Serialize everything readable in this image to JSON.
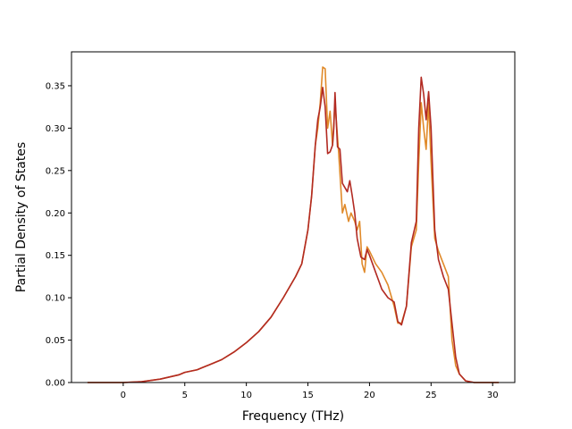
{
  "chart_data": {
    "type": "line",
    "title": "",
    "xlabel": "Frequency (THz)",
    "ylabel": "Partial Density of States",
    "xlim": [
      -4.2,
      31.8
    ],
    "ylim": [
      0.0,
      0.39
    ],
    "xticks": [
      0,
      5,
      10,
      15,
      20,
      25,
      30
    ],
    "yticks": [
      0.0,
      0.05,
      0.1,
      0.15,
      0.2,
      0.25,
      0.3,
      0.35
    ],
    "xtick_labels": [
      "0",
      "5",
      "10",
      "15",
      "20",
      "25",
      "30"
    ],
    "ytick_labels": [
      "0.00",
      "0.05",
      "0.10",
      "0.15",
      "0.20",
      "0.25",
      "0.30",
      "0.35"
    ],
    "grid": false,
    "legend": "none",
    "series": [
      {
        "color": "#e08a2a",
        "x": [
          -2.9,
          0.0,
          1.5,
          3.0,
          4.5,
          5.0,
          6.0,
          6.5,
          7.0,
          8.0,
          9.0,
          10.0,
          11.0,
          12.0,
          13.0,
          14.0,
          14.5,
          15.0,
          15.3,
          15.6,
          15.8,
          16.0,
          16.2,
          16.4,
          16.6,
          16.8,
          17.0,
          17.2,
          17.5,
          17.8,
          18.0,
          18.3,
          18.5,
          18.8,
          19.0,
          19.2,
          19.4,
          19.6,
          19.8,
          20.0,
          20.5,
          21.0,
          21.5,
          22.0,
          22.3,
          22.6,
          23.0,
          23.4,
          23.8,
          24.0,
          24.2,
          24.4,
          24.6,
          24.8,
          25.0,
          25.3,
          25.6,
          26.0,
          26.4,
          26.7,
          27.0,
          27.3,
          27.8,
          28.5,
          30.5
        ],
        "y": [
          0.0,
          0.0,
          0.001,
          0.004,
          0.009,
          0.012,
          0.015,
          0.018,
          0.021,
          0.027,
          0.036,
          0.047,
          0.06,
          0.077,
          0.1,
          0.125,
          0.14,
          0.18,
          0.22,
          0.28,
          0.3,
          0.33,
          0.372,
          0.37,
          0.3,
          0.32,
          0.28,
          0.33,
          0.27,
          0.2,
          0.21,
          0.19,
          0.2,
          0.19,
          0.18,
          0.19,
          0.14,
          0.13,
          0.16,
          0.155,
          0.14,
          0.13,
          0.115,
          0.09,
          0.07,
          0.07,
          0.09,
          0.16,
          0.18,
          0.26,
          0.33,
          0.3,
          0.275,
          0.33,
          0.26,
          0.17,
          0.155,
          0.14,
          0.125,
          0.05,
          0.02,
          0.01,
          0.002,
          0.0,
          0.0
        ]
      },
      {
        "color": "#b22a22",
        "x": [
          -2.9,
          0.0,
          1.5,
          3.0,
          4.5,
          5.0,
          6.0,
          6.5,
          7.0,
          8.0,
          9.0,
          10.0,
          11.0,
          12.0,
          13.0,
          14.0,
          14.5,
          15.0,
          15.3,
          15.6,
          15.8,
          16.0,
          16.2,
          16.4,
          16.6,
          16.8,
          17.0,
          17.1,
          17.2,
          17.4,
          17.6,
          17.8,
          18.0,
          18.2,
          18.4,
          18.6,
          18.8,
          19.0,
          19.3,
          19.6,
          19.8,
          20.0,
          20.5,
          21.0,
          21.5,
          22.0,
          22.3,
          22.6,
          23.0,
          23.4,
          23.8,
          24.0,
          24.2,
          24.4,
          24.6,
          24.8,
          25.0,
          25.3,
          25.6,
          26.0,
          26.4,
          26.7,
          27.0,
          27.3,
          27.8,
          28.5,
          30.5
        ],
        "y": [
          0.0,
          0.0,
          0.001,
          0.004,
          0.009,
          0.012,
          0.015,
          0.018,
          0.021,
          0.027,
          0.036,
          0.047,
          0.06,
          0.077,
          0.1,
          0.125,
          0.14,
          0.18,
          0.22,
          0.28,
          0.31,
          0.325,
          0.348,
          0.325,
          0.27,
          0.272,
          0.28,
          0.3,
          0.342,
          0.278,
          0.275,
          0.235,
          0.23,
          0.225,
          0.238,
          0.22,
          0.2,
          0.17,
          0.148,
          0.145,
          0.157,
          0.15,
          0.13,
          0.11,
          0.1,
          0.095,
          0.072,
          0.068,
          0.09,
          0.165,
          0.19,
          0.3,
          0.36,
          0.34,
          0.31,
          0.343,
          0.3,
          0.18,
          0.145,
          0.125,
          0.11,
          0.07,
          0.03,
          0.01,
          0.002,
          0.0,
          0.0
        ]
      }
    ]
  }
}
